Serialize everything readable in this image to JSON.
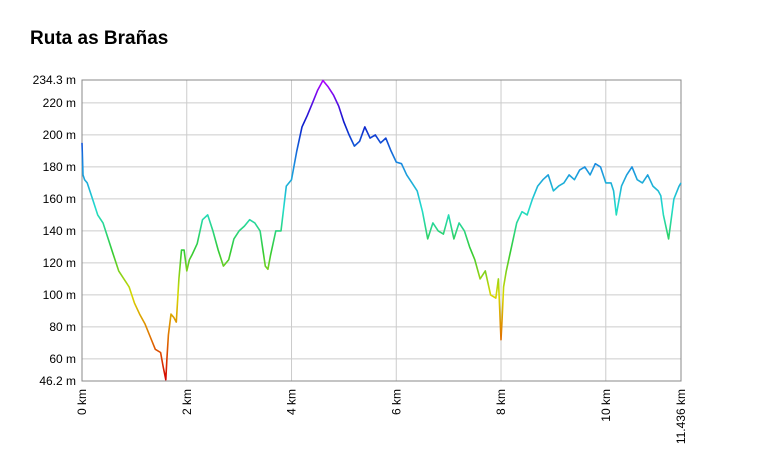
{
  "title": "Ruta as Brañas",
  "chart_data": {
    "type": "line",
    "title": "Ruta as Brañas",
    "xlabel": "",
    "ylabel": "",
    "xlim": [
      0,
      11.436
    ],
    "ylim": [
      46.2,
      234.3
    ],
    "x_ticks": [
      {
        "value": 0,
        "label": "0 km"
      },
      {
        "value": 2,
        "label": "2 km"
      },
      {
        "value": 4,
        "label": "4 km"
      },
      {
        "value": 6,
        "label": "6 km"
      },
      {
        "value": 8,
        "label": "8 km"
      },
      {
        "value": 10,
        "label": "10 km"
      },
      {
        "value": 11.436,
        "label": "11.436 km"
      }
    ],
    "y_ticks": [
      {
        "value": 46.2,
        "label": "46.2 m"
      },
      {
        "value": 60,
        "label": "60 m"
      },
      {
        "value": 80,
        "label": "80 m"
      },
      {
        "value": 100,
        "label": "100 m"
      },
      {
        "value": 120,
        "label": "120 m"
      },
      {
        "value": 140,
        "label": "140 m"
      },
      {
        "value": 160,
        "label": "160 m"
      },
      {
        "value": 180,
        "label": "180 m"
      },
      {
        "value": 200,
        "label": "200 m"
      },
      {
        "value": 220,
        "label": "220 m"
      },
      {
        "value": 234.3,
        "label": "234.3 m"
      }
    ],
    "grid": true,
    "legend": "none",
    "color_scale": [
      "#d40000",
      "#e07000",
      "#d8d800",
      "#33cc33",
      "#22ddcc",
      "#1a8fe0",
      "#0a1acc",
      "#b000ff"
    ],
    "x": [
      0,
      0.02,
      0.05,
      0.1,
      0.2,
      0.3,
      0.4,
      0.5,
      0.6,
      0.7,
      0.8,
      0.9,
      1.0,
      1.1,
      1.2,
      1.3,
      1.4,
      1.5,
      1.55,
      1.6,
      1.62,
      1.65,
      1.7,
      1.75,
      1.8,
      1.85,
      1.9,
      1.95,
      2.0,
      2.05,
      2.1,
      2.2,
      2.3,
      2.4,
      2.45,
      2.5,
      2.6,
      2.7,
      2.8,
      2.9,
      3.0,
      3.1,
      3.2,
      3.3,
      3.4,
      3.5,
      3.55,
      3.6,
      3.7,
      3.8,
      3.9,
      4.0,
      4.1,
      4.2,
      4.3,
      4.4,
      4.5,
      4.6,
      4.7,
      4.8,
      4.9,
      5.0,
      5.1,
      5.2,
      5.3,
      5.4,
      5.5,
      5.6,
      5.7,
      5.8,
      5.9,
      6.0,
      6.1,
      6.2,
      6.3,
      6.4,
      6.5,
      6.6,
      6.7,
      6.8,
      6.9,
      7.0,
      7.1,
      7.2,
      7.3,
      7.4,
      7.5,
      7.6,
      7.7,
      7.8,
      7.9,
      7.95,
      8.0,
      8.02,
      8.05,
      8.1,
      8.2,
      8.3,
      8.4,
      8.5,
      8.6,
      8.7,
      8.8,
      8.9,
      9.0,
      9.1,
      9.2,
      9.3,
      9.4,
      9.5,
      9.6,
      9.7,
      9.8,
      9.9,
      10.0,
      10.1,
      10.15,
      10.2,
      10.3,
      10.4,
      10.5,
      10.6,
      10.7,
      10.8,
      10.9,
      11.0,
      11.05,
      11.1,
      11.2,
      11.3,
      11.4,
      11.436
    ],
    "y": [
      195,
      175,
      172,
      170,
      160,
      150,
      145,
      135,
      125,
      115,
      110,
      105,
      95,
      88,
      82,
      74,
      66,
      64,
      55,
      47,
      60,
      75,
      88,
      86,
      83,
      110,
      128,
      128,
      115,
      122,
      125,
      132,
      147,
      150,
      145,
      140,
      128,
      118,
      122,
      135,
      140,
      143,
      147,
      145,
      140,
      118,
      116,
      125,
      140,
      140,
      168,
      172,
      190,
      205,
      212,
      220,
      228,
      234,
      230,
      225,
      218,
      208,
      200,
      193,
      196,
      205,
      198,
      200,
      195,
      198,
      190,
      183,
      182,
      175,
      170,
      165,
      152,
      135,
      145,
      140,
      138,
      150,
      135,
      145,
      140,
      130,
      122,
      110,
      115,
      100,
      98,
      110,
      72,
      85,
      105,
      115,
      130,
      145,
      152,
      150,
      160,
      168,
      172,
      175,
      165,
      168,
      170,
      175,
      172,
      178,
      180,
      175,
      182,
      180,
      170,
      170,
      165,
      150,
      168,
      175,
      180,
      172,
      170,
      175,
      168,
      165,
      162,
      150,
      135,
      160,
      168,
      170
    ]
  }
}
